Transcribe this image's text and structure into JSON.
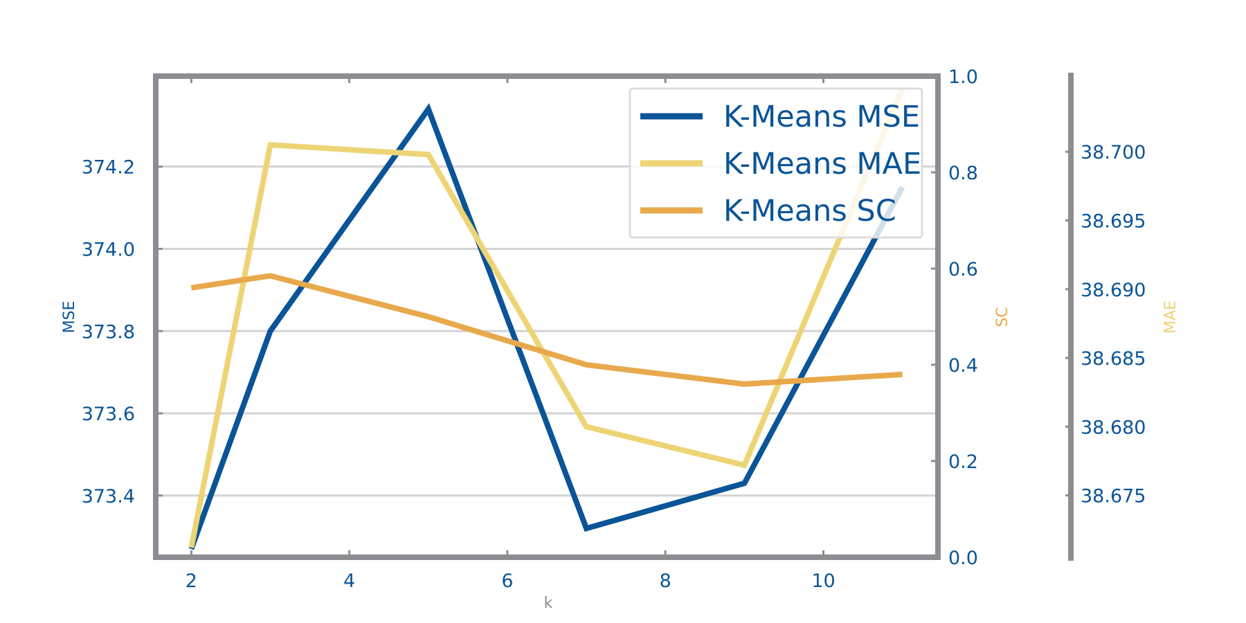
{
  "chart_data": {
    "type": "line",
    "x": [
      2,
      3,
      5,
      7,
      9,
      11
    ],
    "xticks": [
      2,
      4,
      6,
      8,
      10
    ],
    "xlabel": "k",
    "xlim": [
      1.55,
      11.45
    ],
    "series": [
      {
        "name": "K-Means MSE",
        "axis": "MSE",
        "color": "#0a5497",
        "values": [
          373.27,
          373.8,
          374.34,
          373.32,
          373.43,
          374.15
        ]
      },
      {
        "name": "K-Means MAE",
        "axis": "MAE",
        "color": "#edd475",
        "values": [
          38.6712,
          38.7005,
          38.6998,
          38.68,
          38.6772,
          38.7046
        ]
      },
      {
        "name": "K-Means SC",
        "axis": "SC",
        "color": "#e8a94c",
        "values": [
          0.56,
          0.585,
          0.5,
          0.4,
          0.36,
          0.38
        ]
      }
    ],
    "axes": {
      "MSE": {
        "label": "MSE",
        "position": "left",
        "ylim": [
          373.25,
          374.42
        ],
        "ticks": [
          "373.4",
          "373.6",
          "373.8",
          "374.0",
          "374.2"
        ]
      },
      "SC": {
        "label": "SC",
        "position": "right",
        "ylim": [
          0.0,
          1.0
        ],
        "ticks": [
          "0.0",
          "0.2",
          "0.4",
          "0.6",
          "0.8",
          "1.0"
        ]
      },
      "MAE": {
        "label": "MAE",
        "position": "right-offset",
        "ylim": [
          38.6705,
          38.7055
        ],
        "ticks": [
          "38.675",
          "38.680",
          "38.685",
          "38.690",
          "38.695",
          "38.700"
        ]
      }
    },
    "grid": "horizontal",
    "legend": "top-right",
    "colors": {
      "tick_text": "#0a5497",
      "frame": "#8e8c92",
      "grid": "#d3d3d3",
      "xlabel_text": "#8e8c92"
    }
  }
}
